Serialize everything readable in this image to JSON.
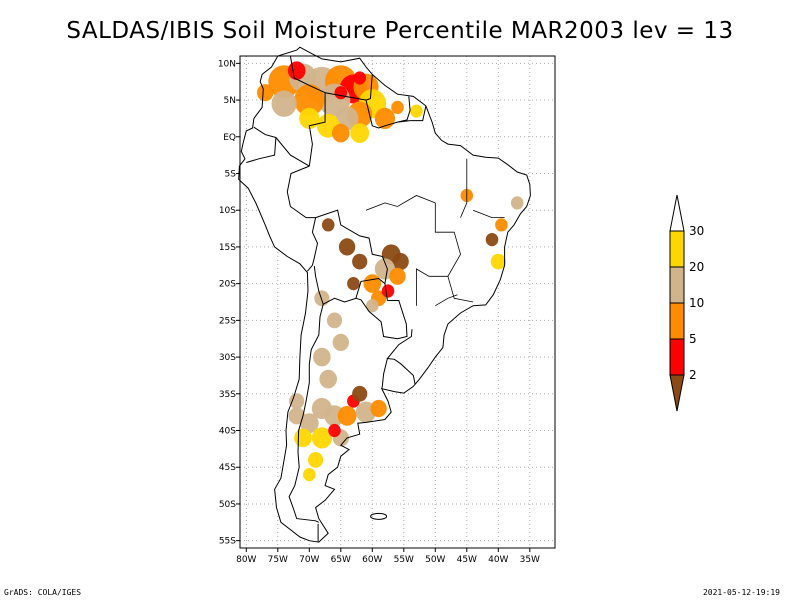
{
  "title": "SALDAS/IBIS Soil Moisture Percentile MAR2003 lev = 13",
  "footer": {
    "left": "GrADS: COLA/IGES",
    "right": "2021-05-12-19:19"
  },
  "chart_data": {
    "type": "heatmap",
    "title": "SALDAS/IBIS Soil Moisture Percentile MAR2003 lev = 13",
    "xlabel": "",
    "ylabel": "",
    "xlim": [
      -81,
      -31
    ],
    "ylim": [
      -56,
      11
    ],
    "x_tick_labels": [
      "80W",
      "75W",
      "70W",
      "65W",
      "60W",
      "55W",
      "50W",
      "45W",
      "40W",
      "35W"
    ],
    "y_tick_labels": [
      "10N",
      "5N",
      "EQ",
      "5S",
      "10S",
      "15S",
      "20S",
      "25S",
      "30S",
      "35S",
      "40S",
      "45S",
      "50S",
      "55S"
    ],
    "grid": true,
    "legend_placement": "right",
    "colorbar": {
      "levels": [
        {
          "label": "2",
          "color": "#8b4a14"
        },
        {
          "label": "5",
          "color": "#ff0000"
        },
        {
          "label": "10",
          "color": "#ff8c00"
        },
        {
          "label": "20",
          "color": "#d2b48c"
        },
        {
          "label": "30",
          "color": "#ffd700"
        }
      ],
      "top_color": "#ffffff",
      "bottom_color": "#8b4a14"
    },
    "colors": {
      "c2": "#8b4a14",
      "c5": "#ff0000",
      "c10": "#ff8c00",
      "c20": "#d2b48c",
      "c30": "#ffd700"
    }
  }
}
